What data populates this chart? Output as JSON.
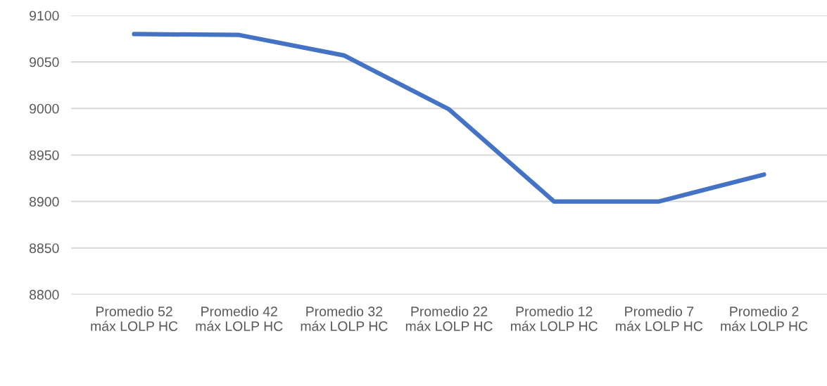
{
  "chart_data": {
    "type": "line",
    "categories": [
      "Promedio 52 máx LOLP HC",
      "Promedio 42 máx LOLP HC",
      "Promedio 32 máx LOLP HC",
      "Promedio 22 máx LOLP HC",
      "Promedio 12 máx LOLP HC",
      "Promedio 7 máx LOLP HC",
      "Promedio 2 máx LOLP HC"
    ],
    "series": [
      {
        "color": "#4472c4",
        "values": [
          9080,
          9079,
          9057,
          8999,
          8900,
          8900,
          8929
        ]
      }
    ],
    "ylim": [
      8800,
      9100
    ],
    "yticks": [
      8800,
      8850,
      8900,
      8950,
      9000,
      9050,
      9100
    ],
    "grid": "y",
    "legend": false,
    "marker": "none",
    "line_style": "solid"
  }
}
